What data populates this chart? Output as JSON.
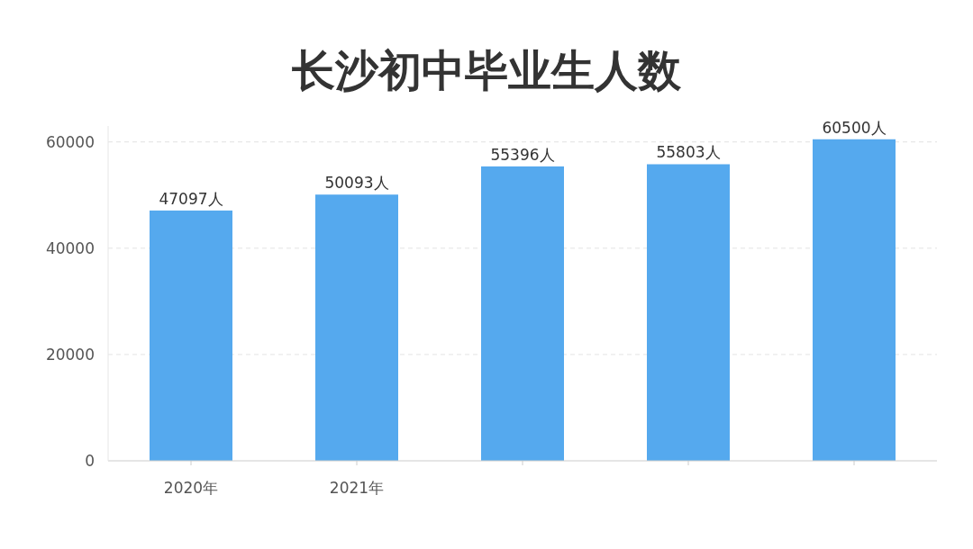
{
  "chart_data": {
    "type": "bar",
    "title": "长沙初中毕业生人数",
    "categories": [
      "2020年",
      "2021年",
      null,
      null,
      null
    ],
    "values": [
      47097,
      50093,
      55396,
      55803,
      60500
    ],
    "value_labels": [
      "47097人",
      "50093人",
      "55396人",
      "55803人",
      "60500人"
    ],
    "color": "#55a9ee",
    "ylim": [
      0,
      63000
    ],
    "yticks": [
      0,
      20000,
      40000,
      60000
    ],
    "grid": "y"
  }
}
